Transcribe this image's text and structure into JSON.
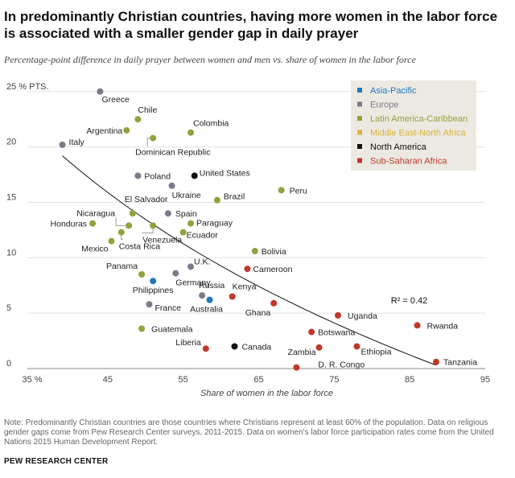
{
  "title": "In predominantly Christian countries, having more women in the labor force is associated with a smaller gender gap in daily prayer",
  "subtitle": "Percentage-point difference in daily prayer between women and men vs. share of women in the labor force",
  "note": "Note: Predominantly Christian countries are those countries where Christians represent at least 60% of the population. Data on religious gender gaps come from Pew Research Center surveys, 2011-2015. Data on women's labor force participation rates come from the United Nations 2015 Human Development Report.",
  "source": "PEW RESEARCH CENTER",
  "colors": {
    "Asia-Pacific": "#1f77c0",
    "Europe": "#7d7b8a",
    "Latin America-Caribbean": "#8ea43c",
    "Middle East-North Africa": "#d8b43a",
    "North America": "#111111",
    "Sub-Saharan Africa": "#c0392b"
  },
  "chart_data": {
    "type": "scatter",
    "xlabel": "Share of women in the labor force",
    "ylabel": "",
    "xlim": [
      35,
      95
    ],
    "ylim": [
      0,
      26
    ],
    "x_ticks": [
      35,
      45,
      55,
      65,
      75,
      85,
      95
    ],
    "x_tick_labels": [
      "35 %",
      "45",
      "55",
      "65",
      "75",
      "85",
      "95"
    ],
    "y_ticks": [
      0,
      5,
      10,
      15,
      20,
      25
    ],
    "y_tick_labels": [
      "0",
      "5",
      "10",
      "15",
      "20",
      "25 % PTS."
    ],
    "grid": "horizontal",
    "legend": {
      "position": "top-right",
      "items": [
        "Asia-Pacific",
        "Europe",
        "Latin America-Caribbean",
        "Middle East-North Africa",
        "North America",
        "Sub-Saharan Africa"
      ]
    },
    "trendline": {
      "type": "logarithmic",
      "r2_label": "R² = 0.42",
      "x_start": 39,
      "y_start": 19.2,
      "x_end": 88.5,
      "y_end": 0.3
    },
    "points": [
      {
        "label": "Greece",
        "x": 44,
        "y": 25,
        "region": "Europe"
      },
      {
        "label": "Chile",
        "x": 49,
        "y": 22.5,
        "region": "Latin America-Caribbean"
      },
      {
        "label": "Argentina",
        "x": 47.5,
        "y": 21.5,
        "region": "Latin America-Caribbean"
      },
      {
        "label": "Colombia",
        "x": 56,
        "y": 21.3,
        "region": "Latin America-Caribbean"
      },
      {
        "label": "Italy",
        "x": 39,
        "y": 20.2,
        "region": "Europe"
      },
      {
        "label": "Dominican Republic",
        "x": 51,
        "y": 20.8,
        "region": "Latin America-Caribbean"
      },
      {
        "label": "Poland",
        "x": 49,
        "y": 17.4,
        "region": "Europe"
      },
      {
        "label": "United States",
        "x": 56.5,
        "y": 17.4,
        "region": "North America"
      },
      {
        "label": "Ukraine",
        "x": 53.5,
        "y": 16.5,
        "region": "Europe"
      },
      {
        "label": "Peru",
        "x": 68,
        "y": 16.1,
        "region": "Latin America-Caribbean"
      },
      {
        "label": "Brazil",
        "x": 59.5,
        "y": 15.2,
        "region": "Latin America-Caribbean"
      },
      {
        "label": "El Salvador",
        "x": 48.3,
        "y": 14,
        "region": "Latin America-Caribbean"
      },
      {
        "label": "Spain",
        "x": 53,
        "y": 14,
        "region": "Europe"
      },
      {
        "label": "Nicaragua",
        "x": 47.8,
        "y": 12.9,
        "region": "Latin America-Caribbean"
      },
      {
        "label": "Honduras",
        "x": 43,
        "y": 13.1,
        "region": "Latin America-Caribbean"
      },
      {
        "label": "Venezuela",
        "x": 51,
        "y": 12.9,
        "region": "Latin America-Caribbean"
      },
      {
        "label": "Paraguay",
        "x": 56,
        "y": 13.1,
        "region": "Latin America-Caribbean"
      },
      {
        "label": "Costa Rica",
        "x": 46.8,
        "y": 12.3,
        "region": "Latin America-Caribbean"
      },
      {
        "label": "Ecuador",
        "x": 55,
        "y": 12.3,
        "region": "Latin America-Caribbean"
      },
      {
        "label": "Mexico",
        "x": 45.5,
        "y": 11.5,
        "region": "Latin America-Caribbean"
      },
      {
        "label": "Bolivia",
        "x": 64.5,
        "y": 10.6,
        "region": "Latin America-Caribbean"
      },
      {
        "label": "U.K.",
        "x": 56,
        "y": 9.2,
        "region": "Europe"
      },
      {
        "label": "Cameroon",
        "x": 63.5,
        "y": 9,
        "region": "Sub-Saharan Africa"
      },
      {
        "label": "Panama",
        "x": 49.5,
        "y": 8.5,
        "region": "Latin America-Caribbean"
      },
      {
        "label": "Germany",
        "x": 54,
        "y": 8.6,
        "region": "Europe"
      },
      {
        "label": "Philippines",
        "x": 51,
        "y": 7.9,
        "region": "Asia-Pacific"
      },
      {
        "label": "Russia",
        "x": 57.5,
        "y": 6.6,
        "region": "Europe"
      },
      {
        "label": "Kenya",
        "x": 61.5,
        "y": 6.5,
        "region": "Sub-Saharan Africa"
      },
      {
        "label": "Australia",
        "x": 58.5,
        "y": 6.2,
        "region": "Asia-Pacific"
      },
      {
        "label": "Ghana",
        "x": 67,
        "y": 5.9,
        "region": "Sub-Saharan Africa"
      },
      {
        "label": "France",
        "x": 50.5,
        "y": 5.8,
        "region": "Europe"
      },
      {
        "label": "Uganda",
        "x": 75.5,
        "y": 4.8,
        "region": "Sub-Saharan Africa"
      },
      {
        "label": "Rwanda",
        "x": 86,
        "y": 3.9,
        "region": "Sub-Saharan Africa"
      },
      {
        "label": "Guatemala",
        "x": 49.5,
        "y": 3.6,
        "region": "Latin America-Caribbean"
      },
      {
        "label": "Botswana",
        "x": 72,
        "y": 3.3,
        "region": "Sub-Saharan Africa"
      },
      {
        "label": "Liberia",
        "x": 58,
        "y": 1.8,
        "region": "Sub-Saharan Africa"
      },
      {
        "label": "Canada",
        "x": 61.8,
        "y": 2,
        "region": "North America"
      },
      {
        "label": "Zambia",
        "x": 73,
        "y": 1.9,
        "region": "Sub-Saharan Africa"
      },
      {
        "label": "Ethiopia",
        "x": 78,
        "y": 2,
        "region": "Sub-Saharan Africa"
      },
      {
        "label": "D. R. Congo",
        "x": 70,
        "y": 0.1,
        "region": "Sub-Saharan Africa"
      },
      {
        "label": "Tanzania",
        "x": 88.5,
        "y": 0.6,
        "region": "Sub-Saharan Africa"
      }
    ]
  }
}
